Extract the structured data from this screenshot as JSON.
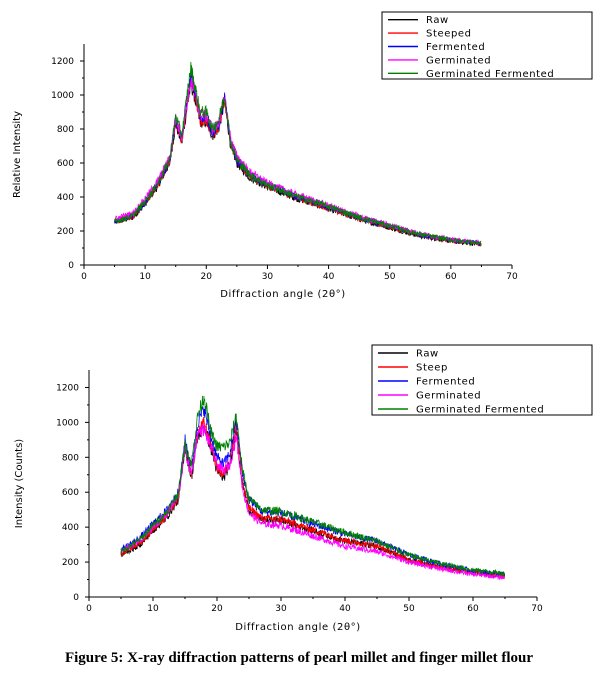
{
  "caption": "Figure 5: X-ray diffraction patterns of pearl millet and finger millet flour",
  "chart_data": [
    {
      "type": "line",
      "title": "",
      "xlabel": "Diffraction angle (2θ°)",
      "ylabel": "Relative Intensity",
      "xlim": [
        0,
        70
      ],
      "ylim": [
        0,
        1300
      ],
      "xticks": [
        0,
        10,
        20,
        30,
        40,
        50,
        60,
        70
      ],
      "yticks": [
        0,
        200,
        400,
        600,
        800,
        1000,
        1200
      ],
      "grid": false,
      "legend": "top-right",
      "series": [
        {
          "name": "Raw",
          "color": "#000000",
          "x": [
            5,
            8,
            10,
            12,
            14,
            15,
            16,
            17,
            17.5,
            18,
            19,
            20,
            21,
            22,
            23,
            24,
            25,
            27,
            30,
            35,
            40,
            45,
            50,
            55,
            60,
            65
          ],
          "y": [
            250,
            280,
            360,
            460,
            600,
            830,
            720,
            960,
            1060,
            1000,
            840,
            840,
            760,
            800,
            960,
            700,
            600,
            520,
            460,
            390,
            330,
            270,
            220,
            170,
            140,
            120
          ]
        },
        {
          "name": "Steeped",
          "color": "#ff0000",
          "x": [
            5,
            8,
            10,
            12,
            14,
            15,
            16,
            17,
            17.5,
            18,
            19,
            20,
            21,
            22,
            23,
            24,
            25,
            27,
            30,
            35,
            40,
            45,
            50,
            55,
            60,
            65
          ],
          "y": [
            255,
            285,
            365,
            465,
            610,
            850,
            730,
            980,
            1080,
            1020,
            850,
            860,
            770,
            810,
            970,
            710,
            610,
            530,
            465,
            395,
            335,
            275,
            225,
            175,
            145,
            125
          ]
        },
        {
          "name": "Fermented",
          "color": "#0000ff",
          "x": [
            5,
            8,
            10,
            12,
            14,
            15,
            16,
            17,
            17.5,
            18,
            19,
            20,
            21,
            22,
            23,
            24,
            25,
            27,
            30,
            35,
            40,
            45,
            50,
            55,
            60,
            65
          ],
          "y": [
            260,
            290,
            370,
            470,
            615,
            860,
            740,
            1000,
            1100,
            1040,
            870,
            880,
            780,
            820,
            980,
            720,
            620,
            535,
            470,
            400,
            340,
            278,
            228,
            178,
            148,
            128
          ]
        },
        {
          "name": "Germinated",
          "color": "#ff00ff",
          "x": [
            5,
            8,
            10,
            12,
            14,
            15,
            16,
            17,
            17.5,
            18,
            19,
            20,
            21,
            22,
            23,
            24,
            25,
            27,
            30,
            35,
            40,
            45,
            50,
            55,
            60,
            65
          ],
          "y": [
            270,
            305,
            390,
            490,
            630,
            860,
            750,
            990,
            1080,
            1030,
            880,
            880,
            800,
            830,
            990,
            740,
            640,
            550,
            480,
            410,
            350,
            285,
            235,
            185,
            150,
            130
          ]
        },
        {
          "name": "Germinated Fermented",
          "color": "#008000",
          "x": [
            5,
            8,
            10,
            12,
            14,
            15,
            16,
            17,
            17.5,
            18,
            19,
            20,
            21,
            22,
            23,
            24,
            25,
            27,
            30,
            35,
            40,
            45,
            50,
            55,
            60,
            65
          ],
          "y": [
            255,
            290,
            375,
            475,
            620,
            880,
            760,
            1040,
            1160,
            1080,
            900,
            900,
            800,
            850,
            1000,
            720,
            620,
            535,
            470,
            400,
            345,
            280,
            230,
            180,
            148,
            128
          ]
        }
      ]
    },
    {
      "type": "line",
      "title": "",
      "xlabel": "Diffraction angle (2θ°)",
      "ylabel": "Intensity (Counts)",
      "xlim": [
        0,
        70
      ],
      "ylim": [
        0,
        1300
      ],
      "xticks": [
        0,
        10,
        20,
        30,
        40,
        50,
        60,
        70
      ],
      "yticks": [
        0,
        200,
        400,
        600,
        800,
        1000,
        1200
      ],
      "grid": false,
      "legend": "top-right",
      "series": [
        {
          "name": "Raw",
          "color": "#000000",
          "x": [
            5,
            8,
            10,
            12,
            14,
            15,
            16,
            17,
            18,
            19,
            20,
            21,
            22,
            23,
            24,
            25,
            27,
            30,
            35,
            40,
            45,
            50,
            55,
            60,
            65
          ],
          "y": [
            240,
            300,
            380,
            450,
            560,
            860,
            680,
            920,
            980,
            860,
            720,
            680,
            760,
            980,
            640,
            500,
            440,
            440,
            380,
            320,
            290,
            210,
            170,
            140,
            120
          ]
        },
        {
          "name": "Steep",
          "color": "#ff0000",
          "x": [
            5,
            8,
            10,
            12,
            14,
            15,
            16,
            17,
            18,
            19,
            20,
            21,
            22,
            23,
            24,
            25,
            27,
            30,
            35,
            40,
            45,
            50,
            55,
            60,
            65
          ],
          "y": [
            250,
            310,
            390,
            460,
            570,
            870,
            700,
            940,
            1000,
            880,
            740,
            700,
            780,
            990,
            650,
            510,
            450,
            445,
            385,
            325,
            292,
            212,
            172,
            142,
            122
          ]
        },
        {
          "name": "Fermented",
          "color": "#0000ff",
          "x": [
            5,
            8,
            10,
            12,
            14,
            15,
            16,
            17,
            18,
            19,
            20,
            21,
            22,
            23,
            24,
            25,
            27,
            30,
            35,
            40,
            45,
            50,
            55,
            60,
            65
          ],
          "y": [
            270,
            340,
            420,
            490,
            600,
            900,
            740,
            1000,
            1080,
            920,
            800,
            760,
            820,
            1020,
            700,
            560,
            490,
            480,
            420,
            360,
            320,
            240,
            190,
            150,
            130
          ]
        },
        {
          "name": "Germinated",
          "color": "#ff00ff",
          "x": [
            5,
            8,
            10,
            12,
            14,
            15,
            16,
            17,
            18,
            19,
            20,
            21,
            22,
            23,
            24,
            25,
            27,
            30,
            35,
            40,
            45,
            50,
            55,
            60,
            65
          ],
          "y": [
            260,
            320,
            400,
            470,
            580,
            840,
            700,
            940,
            960,
            860,
            760,
            720,
            760,
            920,
            620,
            480,
            420,
            410,
            350,
            290,
            260,
            200,
            160,
            130,
            110
          ]
        },
        {
          "name": "Germinated Fermented",
          "color": "#008000",
          "x": [
            5,
            8,
            10,
            12,
            14,
            15,
            16,
            17,
            18,
            19,
            20,
            21,
            22,
            23,
            24,
            25,
            27,
            30,
            35,
            40,
            45,
            50,
            55,
            60,
            65
          ],
          "y": [
            260,
            330,
            410,
            480,
            600,
            880,
            760,
            1040,
            1150,
            950,
            860,
            860,
            880,
            1040,
            720,
            560,
            500,
            490,
            430,
            370,
            320,
            240,
            190,
            155,
            135
          ]
        }
      ]
    }
  ]
}
